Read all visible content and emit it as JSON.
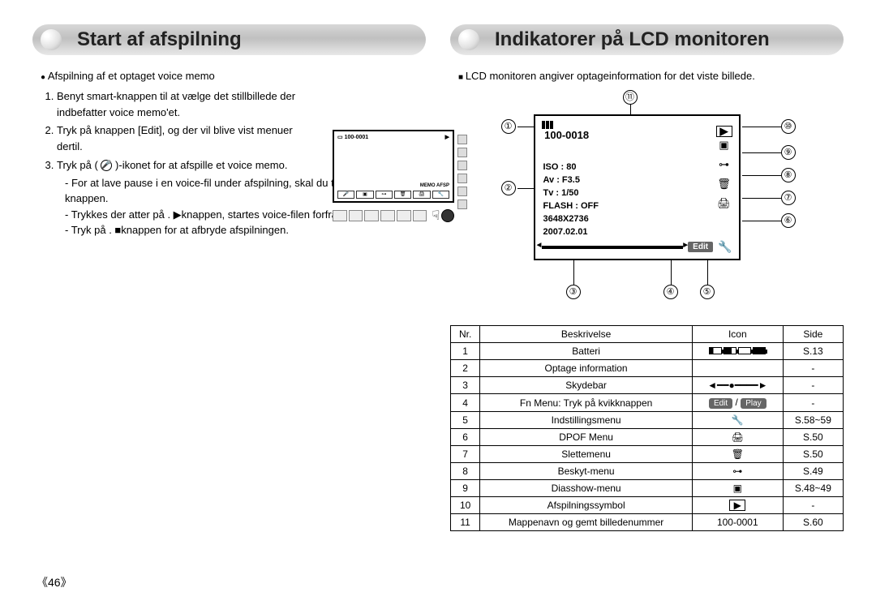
{
  "left": {
    "title": "Start af afspilning",
    "bullet": "Afspilning af et optaget voice memo",
    "steps": [
      "Benyt smart-knappen til at vælge det stillbillede der indbefatter voice memo'et.",
      "Tryk på knappen [Edit], og der vil blive vist menuer dertil.",
      "Tryk på (   )-ikonet for at afspille et voice memo."
    ],
    "substeps": [
      "For at lave pause i en voice-fil under afspilning, skal du trykke på ❙❙-knappen.",
      "Trykkes der atter på . ▶knappen, startes voice-filen forfra.",
      "Tryk på . ■knappen for at afbryde afspilningen."
    ],
    "mini": {
      "folder": "100-0001",
      "memo_label": "MEMO AFSP"
    }
  },
  "right": {
    "title": "Indikatorer på LCD monitoren",
    "intro": "LCD monitoren angiver optageinformation for det viste billede.",
    "lcd": {
      "folder": "100-0018",
      "info": [
        "ISO : 80",
        "Av : F3.5",
        "Tv : 1/50",
        "FLASH : OFF",
        "3648X2736",
        "2007.02.01"
      ],
      "edit": "Edit"
    },
    "callouts": {
      "c1": "①",
      "c2": "②",
      "c3": "③",
      "c4": "④",
      "c5": "⑤",
      "c6": "⑥",
      "c7": "⑦",
      "c8": "⑧",
      "c9": "⑨",
      "c10": "⑩",
      "c11": "⑪"
    },
    "table": {
      "headers": [
        "Nr.",
        "Beskrivelse",
        "Icon",
        "Side"
      ],
      "rows": [
        {
          "nr": "1",
          "desc": "Batteri",
          "icon": "batt",
          "side": "S.13"
        },
        {
          "nr": "2",
          "desc": "Optage information",
          "icon": "",
          "side": "-"
        },
        {
          "nr": "3",
          "desc": "Skydebar",
          "icon": "slider",
          "side": "-"
        },
        {
          "nr": "4",
          "desc": "Fn Menu: Tryk på kvikknappen",
          "icon": "editplay",
          "side": "-"
        },
        {
          "nr": "5",
          "desc": "Indstillingsmenu",
          "icon": "🔧",
          "side": "S.58~59"
        },
        {
          "nr": "6",
          "desc": "DPOF Menu",
          "icon": "🖨",
          "side": "S.50"
        },
        {
          "nr": "7",
          "desc": "Slettemenu",
          "icon": "🗑",
          "side": "S.50"
        },
        {
          "nr": "8",
          "desc": "Beskyt-menu",
          "icon": "⊶",
          "side": "S.49"
        },
        {
          "nr": "9",
          "desc": "Diasshow-menu",
          "icon": "▣",
          "side": "S.48~49"
        },
        {
          "nr": "10",
          "desc": "Afspilningssymbol",
          "icon": "▶",
          "side": "-"
        },
        {
          "nr": "11",
          "desc": "Mappenavn og gemt billedenummer",
          "icon": "100-0001",
          "side": "S.60"
        }
      ],
      "edit_label": "Edit",
      "play_label": "Play"
    }
  },
  "page_number": "《46》"
}
